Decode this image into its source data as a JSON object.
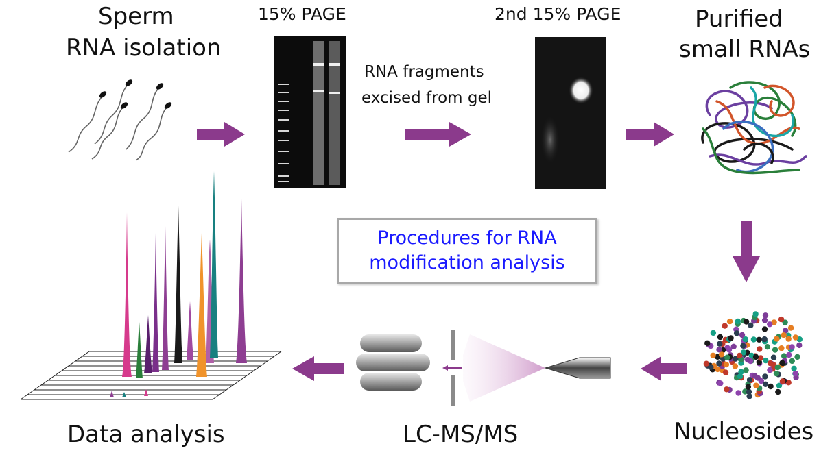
{
  "colors": {
    "arrow": "#8b3a8c",
    "procedure_text": "#1a1aff",
    "box_border": "#a8a8a8"
  },
  "steps": {
    "sperm": {
      "line1": "Sperm",
      "line2": "RNA isolation"
    },
    "page1": {
      "label": "15% PAGE"
    },
    "excise": {
      "line1": "RNA fragments",
      "line2": "excised from gel"
    },
    "page2": {
      "label": "2nd 15% PAGE"
    },
    "purified": {
      "line1": "Purified",
      "line2": "small RNAs"
    },
    "nucleosides": {
      "label": "Nucleosides"
    },
    "lcms": {
      "label": "LC-MS/MS"
    },
    "data": {
      "label": "Data analysis"
    }
  },
  "procedure_box": {
    "line1": "Procedures for RNA",
    "line2": "modification analysis"
  },
  "icons": [
    "sperm-icon",
    "gel-image",
    "rna-tangle-icon",
    "nucleoside-dots-icon",
    "ms-instrument-icon",
    "chromatogram-icon"
  ]
}
